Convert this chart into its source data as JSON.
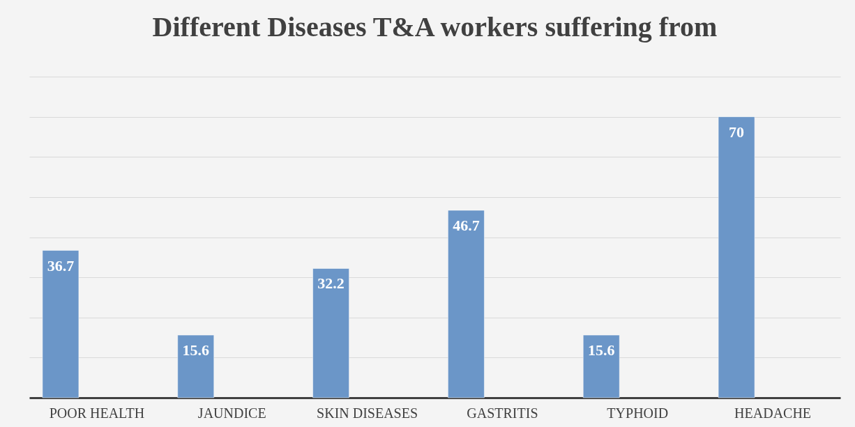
{
  "chart_data": {
    "type": "bar",
    "title": "Different Diseases T&A workers suffering from",
    "categories": [
      "POOR HEALTH",
      "JAUNDICE",
      "SKIN DISEASES",
      "GASTRITIS",
      "TYPHOID",
      "HEADACHE"
    ],
    "values": [
      36.7,
      15.6,
      32.2,
      46.7,
      15.6,
      70
    ],
    "color": "#6b96c8",
    "ylim": [
      0,
      80
    ],
    "yticks": [
      {
        "value": 0,
        "label": null
      },
      {
        "value": 10,
        "label": null
      },
      {
        "value": 20,
        "label": null
      },
      {
        "value": 30,
        "label": null
      },
      {
        "value": 40,
        "label": null
      },
      {
        "value": 50,
        "label": null
      },
      {
        "value": 60,
        "label": null
      },
      {
        "value": 70,
        "label": null
      },
      {
        "value": 80,
        "label": null
      }
    ],
    "grid": "y",
    "tick_labels": "x",
    "data_labels": true
  }
}
